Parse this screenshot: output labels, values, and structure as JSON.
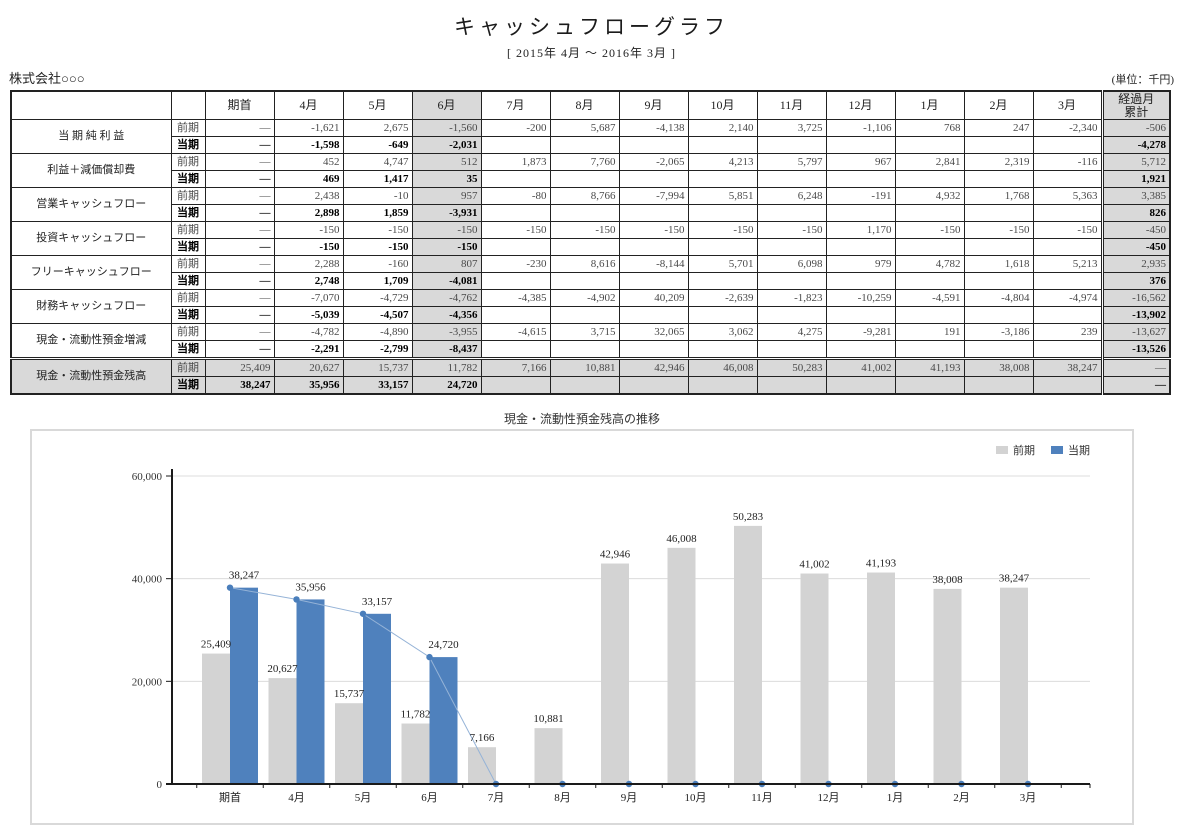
{
  "page": {
    "title": "キャッシュフローグラフ",
    "subtitle": "[ 2015年 4月 ～ 2016年 3月 ]",
    "company": "株式会社○○○",
    "unit_note": "(単位：千円)"
  },
  "table": {
    "columns": [
      "期首",
      "4月",
      "5月",
      "6月",
      "7月",
      "8月",
      "9月",
      "10月",
      "11月",
      "12月",
      "1月",
      "2月",
      "3月"
    ],
    "cumulative_header_line1": "経過月",
    "cumulative_header_line2": "累計",
    "highlight_column_index": 3,
    "period_prev": "前期",
    "period_curr": "当期",
    "rows": [
      {
        "label": "当 期 純 利 益",
        "shaded": false,
        "prev": [
          "—",
          "-1,621",
          "2,675",
          "-1,560",
          "-200",
          "5,687",
          "-4,138",
          "2,140",
          "3,725",
          "-1,106",
          "768",
          "247",
          "-2,340",
          "-506"
        ],
        "curr": [
          "—",
          "-1,598",
          "-649",
          "-2,031",
          "",
          "",
          "",
          "",
          "",
          "",
          "",
          "",
          "",
          "-4,278"
        ]
      },
      {
        "label": "利益＋減価償却費",
        "shaded": false,
        "prev": [
          "—",
          "452",
          "4,747",
          "512",
          "1,873",
          "7,760",
          "-2,065",
          "4,213",
          "5,797",
          "967",
          "2,841",
          "2,319",
          "-116",
          "5,712"
        ],
        "curr": [
          "—",
          "469",
          "1,417",
          "35",
          "",
          "",
          "",
          "",
          "",
          "",
          "",
          "",
          "",
          "1,921"
        ]
      },
      {
        "label": "営業キャッシュフロー",
        "shaded": false,
        "prev": [
          "—",
          "2,438",
          "-10",
          "957",
          "-80",
          "8,766",
          "-7,994",
          "5,851",
          "6,248",
          "-191",
          "4,932",
          "1,768",
          "5,363",
          "3,385"
        ],
        "curr": [
          "—",
          "2,898",
          "1,859",
          "-3,931",
          "",
          "",
          "",
          "",
          "",
          "",
          "",
          "",
          "",
          "826"
        ]
      },
      {
        "label": "投資キャッシュフロー",
        "shaded": false,
        "prev": [
          "—",
          "-150",
          "-150",
          "-150",
          "-150",
          "-150",
          "-150",
          "-150",
          "-150",
          "1,170",
          "-150",
          "-150",
          "-150",
          "-450"
        ],
        "curr": [
          "—",
          "-150",
          "-150",
          "-150",
          "",
          "",
          "",
          "",
          "",
          "",
          "",
          "",
          "",
          "-450"
        ]
      },
      {
        "label": "フリーキャッシュフロー",
        "shaded": false,
        "prev": [
          "—",
          "2,288",
          "-160",
          "807",
          "-230",
          "8,616",
          "-8,144",
          "5,701",
          "6,098",
          "979",
          "4,782",
          "1,618",
          "5,213",
          "2,935"
        ],
        "curr": [
          "—",
          "2,748",
          "1,709",
          "-4,081",
          "",
          "",
          "",
          "",
          "",
          "",
          "",
          "",
          "",
          "376"
        ]
      },
      {
        "label": "財務キャッシュフロー",
        "shaded": false,
        "prev": [
          "—",
          "-7,070",
          "-4,729",
          "-4,762",
          "-4,385",
          "-4,902",
          "40,209",
          "-2,639",
          "-1,823",
          "-10,259",
          "-4,591",
          "-4,804",
          "-4,974",
          "-16,562"
        ],
        "curr": [
          "—",
          "-5,039",
          "-4,507",
          "-4,356",
          "",
          "",
          "",
          "",
          "",
          "",
          "",
          "",
          "",
          "-13,902"
        ]
      },
      {
        "label": "現金・流動性預金増減",
        "shaded": false,
        "prev": [
          "—",
          "-4,782",
          "-4,890",
          "-3,955",
          "-4,615",
          "3,715",
          "32,065",
          "3,062",
          "4,275",
          "-9,281",
          "191",
          "-3,186",
          "239",
          "-13,627"
        ],
        "curr": [
          "—",
          "-2,291",
          "-2,799",
          "-8,437",
          "",
          "",
          "",
          "",
          "",
          "",
          "",
          "",
          "",
          "-13,526"
        ]
      },
      {
        "label": "現金・流動性預金残高",
        "shaded": true,
        "prev": [
          "25,409",
          "20,627",
          "15,737",
          "11,782",
          "7,166",
          "10,881",
          "42,946",
          "46,008",
          "50,283",
          "41,002",
          "41,193",
          "38,008",
          "38,247",
          "—"
        ],
        "curr": [
          "38,247",
          "35,956",
          "33,157",
          "24,720",
          "",
          "",
          "",
          "",
          "",
          "",
          "",
          "",
          "",
          "—"
        ]
      }
    ]
  },
  "chart_data": {
    "type": "bar",
    "title": "現金・流動性預金残高の推移",
    "categories": [
      "期首",
      "4月",
      "5月",
      "6月",
      "7月",
      "8月",
      "9月",
      "10月",
      "11月",
      "12月",
      "1月",
      "2月",
      "3月"
    ],
    "series": [
      {
        "name": "前期",
        "type": "bar",
        "color": "#d3d3d3",
        "values": [
          25409,
          20627,
          15737,
          11782,
          7166,
          10881,
          42946,
          46008,
          50283,
          41002,
          41193,
          38008,
          38247
        ]
      },
      {
        "name": "当期",
        "type": "bar",
        "color": "#4f81bd",
        "values": [
          38247,
          35956,
          33157,
          24720,
          0,
          0,
          0,
          0,
          0,
          0,
          0,
          0,
          0
        ]
      }
    ],
    "line_overlay": {
      "name": "当期",
      "color": "#95b3d7",
      "marker_color": "#4a7ebb",
      "values": [
        38247,
        35956,
        33157,
        24720,
        0,
        0,
        0,
        0,
        0,
        0,
        0,
        0,
        0
      ]
    },
    "ylim": [
      0,
      60000
    ],
    "yticks": [
      0,
      20000,
      40000,
      60000
    ],
    "ytick_labels": [
      "0",
      "20,000",
      "40,000",
      "60,000"
    ],
    "grid": true,
    "legend_position": "top-right"
  }
}
